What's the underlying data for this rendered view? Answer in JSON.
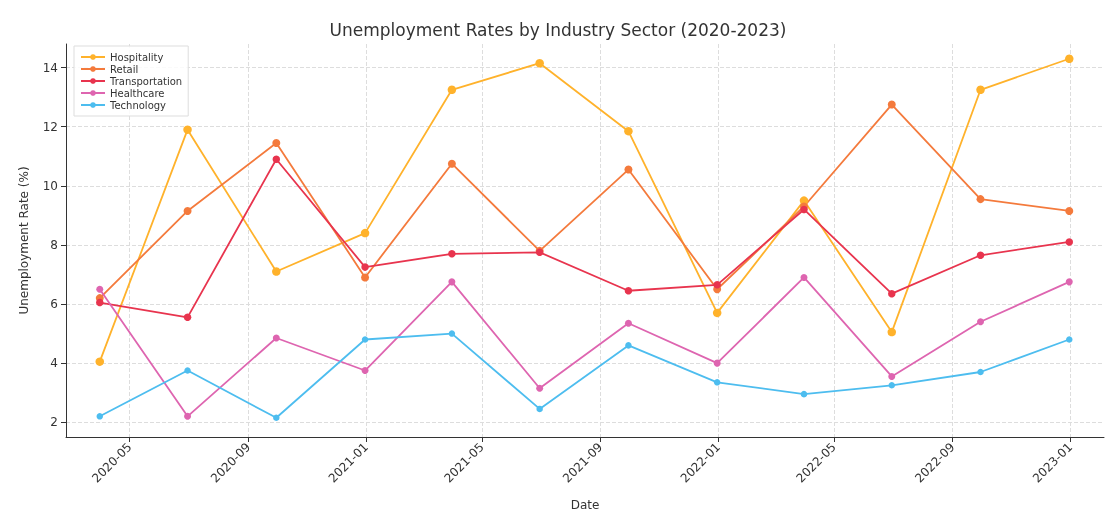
{
  "chart_data": {
    "type": "line",
    "title": "Unemployment Rates by Industry Sector (2020-2023)",
    "xlabel": "Date",
    "ylabel": "Unemployment Rate (%)",
    "x": [
      "2020-03-31",
      "2020-06-30",
      "2020-09-30",
      "2020-12-31",
      "2021-03-31",
      "2021-06-30",
      "2021-09-30",
      "2021-12-31",
      "2022-03-31",
      "2022-06-30",
      "2022-09-30",
      "2022-12-31"
    ],
    "series": [
      {
        "name": "Hospitality",
        "color": "#ffb22b",
        "values": [
          4.05,
          11.9,
          7.1,
          8.4,
          13.25,
          14.15,
          11.85,
          5.7,
          9.5,
          5.05,
          13.25,
          14.3
        ]
      },
      {
        "name": "Retail",
        "color": "#f47a3c",
        "values": [
          6.2,
          9.15,
          11.45,
          6.9,
          10.75,
          7.8,
          10.55,
          6.5,
          9.3,
          12.75,
          9.55,
          9.15
        ]
      },
      {
        "name": "Transportation",
        "color": "#e8344e",
        "values": [
          6.05,
          5.55,
          10.9,
          7.25,
          7.7,
          7.75,
          6.45,
          6.65,
          9.2,
          6.35,
          7.65,
          8.1
        ]
      },
      {
        "name": "Healthcare",
        "color": "#de65b0",
        "values": [
          6.5,
          2.2,
          4.85,
          3.75,
          6.75,
          3.15,
          5.35,
          4.0,
          6.9,
          3.55,
          5.4,
          6.75
        ]
      },
      {
        "name": "Technology",
        "color": "#4dbdef",
        "values": [
          2.2,
          3.75,
          2.15,
          4.8,
          5.0,
          2.45,
          4.6,
          3.35,
          2.95,
          3.25,
          3.7,
          4.8
        ]
      }
    ],
    "xlim": [
      "2020-02-25",
      "2023-02-05"
    ],
    "xticks": [
      {
        "value": "2020-05-01",
        "label": "2020-05"
      },
      {
        "value": "2020-09-01",
        "label": "2020-09"
      },
      {
        "value": "2021-01-01",
        "label": "2021-01"
      },
      {
        "value": "2021-05-01",
        "label": "2021-05"
      },
      {
        "value": "2021-09-01",
        "label": "2021-09"
      },
      {
        "value": "2022-01-01",
        "label": "2022-01"
      },
      {
        "value": "2022-05-01",
        "label": "2022-05"
      },
      {
        "value": "2022-09-01",
        "label": "2022-09"
      },
      {
        "value": "2023-01-01",
        "label": "2023-01"
      }
    ],
    "ylim": [
      1.5,
      14.8
    ],
    "yticks": [
      2,
      4,
      6,
      8,
      10,
      12,
      14
    ],
    "grid": true,
    "legend": "top left",
    "marker": "circle",
    "line_style": "solid"
  }
}
